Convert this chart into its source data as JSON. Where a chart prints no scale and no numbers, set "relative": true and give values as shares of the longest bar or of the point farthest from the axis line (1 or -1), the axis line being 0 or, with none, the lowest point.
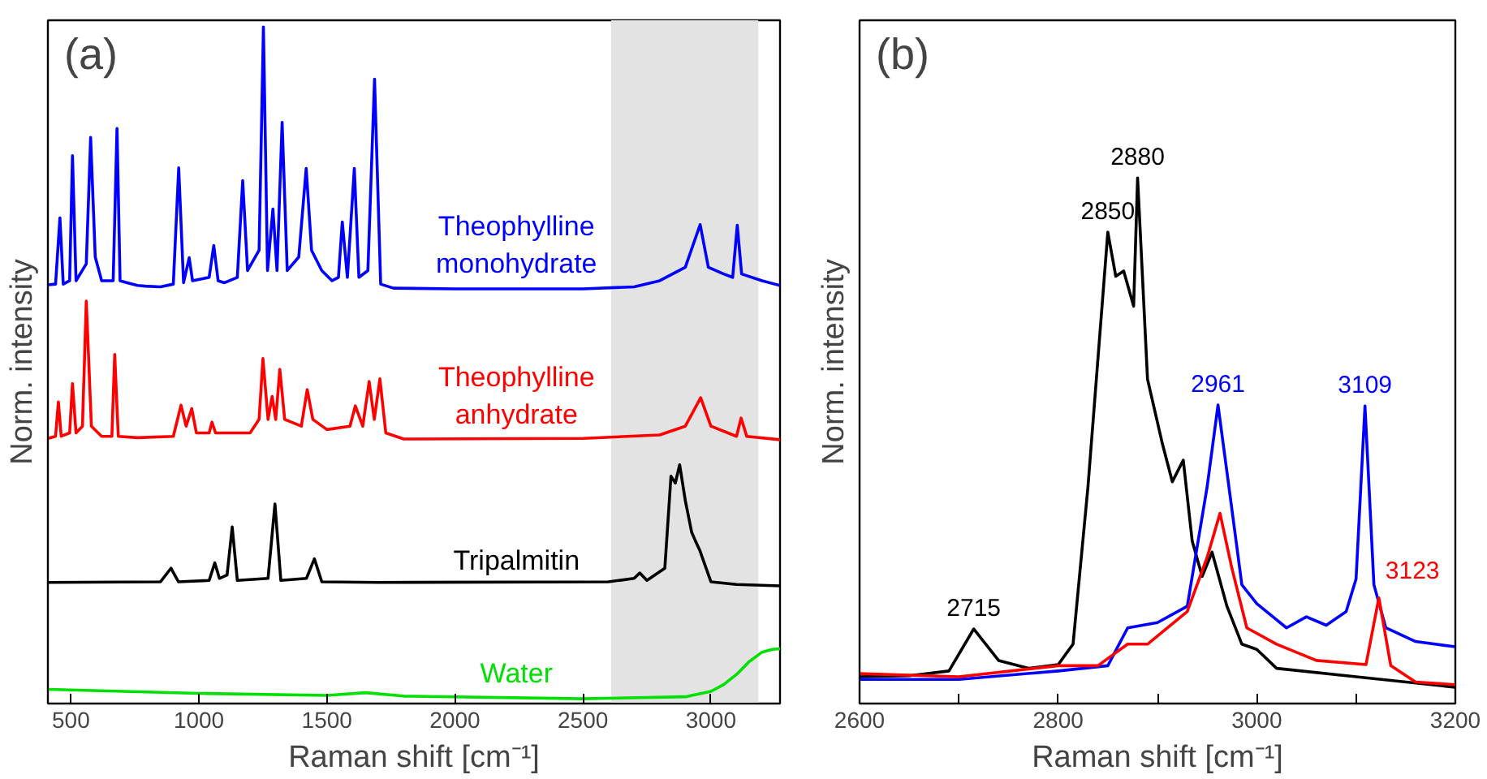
{
  "chart_data": [
    {
      "type": "line",
      "title": "(a)",
      "xlabel": "Raman shift [cm⁻¹]",
      "ylabel": "Norm. intensity",
      "relative": true,
      "xlim": [
        410,
        3270
      ],
      "xticks": [
        500,
        1000,
        1500,
        2000,
        2500,
        3000
      ],
      "bands": [
        {
          "axis": "x",
          "from": 2610,
          "to": 3185,
          "color": "#e3e3e3"
        }
      ],
      "series": [
        {
          "name": "Theophylline monohydrate",
          "color": "#0000ff",
          "x": [
            410,
            440,
            457,
            470,
            495,
            506,
            520,
            560,
            577,
            595,
            620,
            665,
            680,
            692,
            720,
            760,
            790,
            850,
            900,
            921,
            940,
            962,
            975,
            1040,
            1058,
            1075,
            1100,
            1150,
            1171,
            1190,
            1235,
            1252,
            1268,
            1289,
            1305,
            1325,
            1345,
            1390,
            1419,
            1440,
            1480,
            1520,
            1545,
            1560,
            1580,
            1607,
            1625,
            1660,
            1686,
            1710,
            1760,
            2000,
            2500,
            2700,
            2800,
            2900,
            2958,
            2990,
            3050,
            3085,
            3103,
            3120,
            3200,
            3270
          ],
          "values": [
            0.619,
            0.62,
            0.718,
            0.62,
            0.625,
            0.81,
            0.625,
            0.65,
            0.837,
            0.66,
            0.625,
            0.625,
            0.85,
            0.625,
            0.622,
            0.618,
            0.617,
            0.616,
            0.62,
            0.792,
            0.622,
            0.659,
            0.625,
            0.63,
            0.677,
            0.625,
            0.622,
            0.63,
            0.773,
            0.64,
            0.67,
            1.0,
            0.64,
            0.731,
            0.64,
            0.859,
            0.64,
            0.66,
            0.791,
            0.67,
            0.64,
            0.625,
            0.63,
            0.712,
            0.63,
            0.791,
            0.63,
            0.64,
            0.923,
            0.62,
            0.614,
            0.613,
            0.613,
            0.616,
            0.625,
            0.645,
            0.708,
            0.645,
            0.635,
            0.63,
            0.707,
            0.635,
            0.625,
            0.618
          ]
        },
        {
          "name": "Theophylline anhydrate",
          "color": "#ff0000",
          "x": [
            410,
            440,
            451,
            462,
            495,
            506,
            520,
            545,
            560,
            580,
            620,
            660,
            671,
            685,
            760,
            900,
            930,
            950,
            972,
            990,
            1040,
            1051,
            1065,
            1200,
            1235,
            1250,
            1270,
            1286,
            1300,
            1316,
            1335,
            1400,
            1423,
            1445,
            1500,
            1590,
            1611,
            1640,
            1665,
            1685,
            1707,
            1730,
            1800,
            2500,
            2800,
            2900,
            2960,
            3000,
            3100,
            3118,
            3140,
            3270
          ],
          "values": [
            0.392,
            0.395,
            0.446,
            0.395,
            0.4,
            0.473,
            0.4,
            0.41,
            0.595,
            0.41,
            0.395,
            0.395,
            0.516,
            0.395,
            0.393,
            0.395,
            0.441,
            0.41,
            0.436,
            0.4,
            0.4,
            0.416,
            0.4,
            0.4,
            0.42,
            0.51,
            0.42,
            0.454,
            0.42,
            0.494,
            0.42,
            0.41,
            0.464,
            0.42,
            0.405,
            0.41,
            0.44,
            0.41,
            0.476,
            0.42,
            0.48,
            0.4,
            0.391,
            0.392,
            0.397,
            0.41,
            0.452,
            0.41,
            0.395,
            0.422,
            0.395,
            0.39
          ]
        },
        {
          "name": "Tripalmitin",
          "color": "#000000",
          "x": [
            410,
            850,
            891,
            920,
            1040,
            1062,
            1080,
            1110,
            1130,
            1150,
            1270,
            1297,
            1320,
            1420,
            1451,
            1480,
            1700,
            2600,
            2700,
            2722,
            2750,
            2820,
            2844,
            2861,
            2878,
            2900,
            2925,
            2940,
            2957,
            3000,
            3100,
            3270
          ],
          "values": [
            0.179,
            0.18,
            0.2,
            0.18,
            0.182,
            0.208,
            0.185,
            0.19,
            0.261,
            0.182,
            0.185,
            0.295,
            0.182,
            0.185,
            0.214,
            0.18,
            0.179,
            0.18,
            0.185,
            0.193,
            0.182,
            0.2,
            0.336,
            0.326,
            0.353,
            0.3,
            0.253,
            0.24,
            0.226,
            0.18,
            0.176,
            0.174
          ]
        },
        {
          "name": "Water",
          "color": "#00e000",
          "x": [
            410,
            1000,
            1500,
            1650,
            1800,
            2500,
            2900,
            3000,
            3050,
            3100,
            3150,
            3200,
            3240,
            3270
          ],
          "values": [
            0.021,
            0.015,
            0.012,
            0.016,
            0.011,
            0.007,
            0.01,
            0.018,
            0.028,
            0.043,
            0.062,
            0.076,
            0.08,
            0.081
          ]
        }
      ]
    },
    {
      "type": "line",
      "title": "(b)",
      "xlabel": "Raman shift [cm⁻¹]",
      "ylabel": "Norm. intensity",
      "relative": true,
      "xlim": [
        2600,
        3200
      ],
      "xticks": [
        2600,
        {
          "value": 2700,
          "label": null
        },
        2800,
        {
          "value": 2900,
          "label": null
        },
        3000,
        {
          "value": 3100,
          "label": null
        },
        3200
      ],
      "annotations": [
        {
          "text": "2715",
          "x": 2715,
          "y": 0.142
        },
        {
          "text": "2850",
          "x": 2850,
          "y": 0.897
        },
        {
          "text": "2880",
          "x": 2880,
          "y": 1.0
        },
        {
          "text": "2961",
          "x": 2961,
          "y": 0.568
        },
        {
          "text": "3109",
          "x": 3109,
          "y": 0.566
        },
        {
          "text": "3123",
          "x": 3123,
          "y": 0.201
        }
      ],
      "series": [
        {
          "color": "#000000",
          "x": [
            2600,
            2650,
            2690,
            2715,
            2740,
            2770,
            2800,
            2815,
            2830,
            2850,
            2858,
            2866,
            2876,
            2880,
            2890,
            2905,
            2915,
            2926,
            2935,
            2945,
            2955,
            2970,
            2985,
            3000,
            3020,
            3100,
            3200
          ],
          "values": [
            0.051,
            0.053,
            0.062,
            0.142,
            0.082,
            0.067,
            0.074,
            0.113,
            0.412,
            0.897,
            0.813,
            0.823,
            0.756,
            1.0,
            0.617,
            0.494,
            0.422,
            0.463,
            0.309,
            0.242,
            0.288,
            0.185,
            0.113,
            0.103,
            0.067,
            0.051,
            0.031
          ]
        },
        {
          "color": "#0000ff",
          "x": [
            2600,
            2700,
            2800,
            2850,
            2870,
            2900,
            2930,
            2950,
            2961,
            2972,
            2985,
            3000,
            3030,
            3050,
            3070,
            3090,
            3100,
            3109,
            3118,
            3130,
            3160,
            3200
          ],
          "values": [
            0.046,
            0.046,
            0.062,
            0.072,
            0.144,
            0.154,
            0.185,
            0.412,
            0.568,
            0.412,
            0.226,
            0.19,
            0.144,
            0.165,
            0.149,
            0.175,
            0.237,
            0.566,
            0.226,
            0.144,
            0.118,
            0.108
          ]
        },
        {
          "color": "#ff0000",
          "x": [
            2600,
            2700,
            2800,
            2840,
            2870,
            2890,
            2930,
            2950,
            2963,
            2975,
            2990,
            3020,
            3060,
            3110,
            3123,
            3135,
            3160,
            3200
          ],
          "values": [
            0.057,
            0.051,
            0.072,
            0.072,
            0.113,
            0.113,
            0.175,
            0.278,
            0.362,
            0.257,
            0.144,
            0.113,
            0.082,
            0.074,
            0.201,
            0.072,
            0.041,
            0.036
          ]
        }
      ]
    }
  ]
}
